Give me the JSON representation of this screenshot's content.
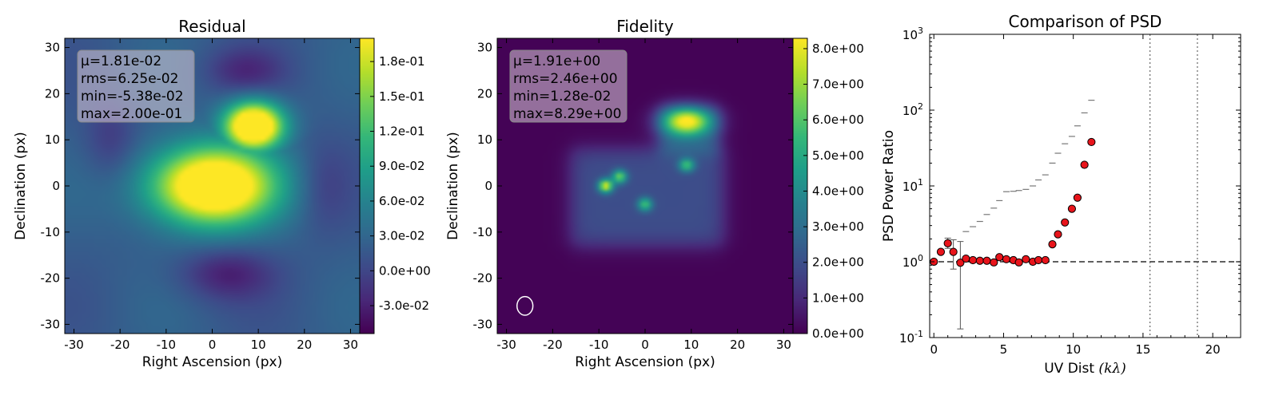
{
  "chart_data": [
    {
      "type": "heatmap",
      "title": "Residual",
      "xlabel": "Right Ascension (px)",
      "ylabel": "Declination (px)",
      "xlim": [
        -32,
        32
      ],
      "ylim": [
        -32,
        32
      ],
      "xticks": [
        -30,
        -20,
        -10,
        0,
        10,
        20,
        30
      ],
      "yticks": [
        -30,
        -20,
        -10,
        0,
        10,
        20,
        30
      ],
      "colormap": "viridis",
      "color_range": [
        -0.054,
        0.2
      ],
      "colorbar_ticks": [
        "-3.0e-02",
        "0.0e+00",
        "3.0e-02",
        "6.0e-02",
        "9.0e-02",
        "1.2e-01",
        "1.5e-01",
        "1.8e-01"
      ],
      "colorbar_tick_values": [
        -0.03,
        0.0,
        0.03,
        0.06,
        0.09,
        0.12,
        0.15,
        0.18
      ],
      "stats": [
        "μ=1.81e-02",
        "rms=6.25e-02",
        "min=-5.38e-02",
        "max=2.00e-01"
      ],
      "sources": [
        {
          "x": 0,
          "y": 0,
          "sx": 9.5,
          "sy": 6,
          "amp": 0.19
        },
        {
          "x": 9,
          "y": 13,
          "sx": 4.5,
          "sy": 3.6,
          "amp": 0.2
        },
        {
          "x": 9,
          "y": 5,
          "sx": 1.5,
          "sy": 1.5,
          "amp": 0.05
        }
      ],
      "negatives": [
        {
          "x": 3,
          "y": -19,
          "sx": 7,
          "sy": 4,
          "amp": -0.05
        },
        {
          "x": 7,
          "y": 25,
          "sx": 6,
          "sy": 3.5,
          "amp": -0.04
        },
        {
          "x": -22,
          "y": 10,
          "sx": 4,
          "sy": 6,
          "amp": -0.03
        },
        {
          "x": 24,
          "y": 0,
          "sx": 4,
          "sy": 7,
          "amp": -0.025
        }
      ]
    },
    {
      "type": "heatmap",
      "title": "Fidelity",
      "xlabel": "Right Ascension (px)",
      "ylabel": "Declination (px)",
      "xlim": [
        -32,
        32
      ],
      "ylim": [
        -32,
        32
      ],
      "xticks": [
        -30,
        -20,
        -10,
        0,
        10,
        20,
        30
      ],
      "yticks": [
        -30,
        -20,
        -10,
        0,
        10,
        20,
        30
      ],
      "colormap": "viridis",
      "color_range": [
        0,
        8.29
      ],
      "colorbar_ticks": [
        "0.0e+00",
        "1.0e+00",
        "2.0e+00",
        "3.0e+00",
        "4.0e+00",
        "5.0e+00",
        "6.0e+00",
        "7.0e+00",
        "8.0e+00"
      ],
      "colorbar_tick_values": [
        0,
        1,
        2,
        3,
        4,
        5,
        6,
        7,
        8
      ],
      "stats": [
        "μ=1.91e+00",
        "rms=2.46e+00",
        "min=1.28e-02",
        "max=8.29e+00"
      ],
      "plateau": {
        "xmin": -16,
        "xmax": 17,
        "ymin": -13,
        "ymax": 8,
        "level": 1.9
      },
      "plateau2": {
        "xmin": 3,
        "xmax": 16,
        "ymin": 7,
        "ymax": 17,
        "level": 2.2
      },
      "sources": [
        {
          "x": 9,
          "y": 14,
          "sx": 3.8,
          "sy": 2.2,
          "amp": 6.5
        },
        {
          "x": -8.5,
          "y": 0,
          "sx": 1.1,
          "sy": 1.0,
          "amp": 6.0
        },
        {
          "x": -5.5,
          "y": 2,
          "sx": 1.1,
          "sy": 1.0,
          "amp": 4.5
        },
        {
          "x": 0,
          "y": -4,
          "sx": 1.1,
          "sy": 1.0,
          "amp": 3.8
        },
        {
          "x": 9,
          "y": 4.5,
          "sx": 1.2,
          "sy": 1.0,
          "amp": 3.8
        }
      ],
      "beam": {
        "x": -26,
        "y": -26,
        "rx": 1.2,
        "ry": 1.5
      }
    },
    {
      "type": "scatter",
      "title": "Comparison of PSD",
      "xlabel": "UV Dist",
      "xlabel_math": "(kλ)",
      "ylabel": "PSD Power Ratio",
      "xlim": [
        -0.3,
        22
      ],
      "ylim": [
        0.1,
        1000
      ],
      "yscale": "log",
      "xticks": [
        0,
        5,
        10,
        15,
        20
      ],
      "yticks": [
        {
          "value": 0.1,
          "base": "10",
          "exp": "-1"
        },
        {
          "value": 1,
          "base": "10",
          "exp": "0"
        },
        {
          "value": 10,
          "base": "10",
          "exp": "1"
        },
        {
          "value": 100,
          "base": "10",
          "exp": "2"
        },
        {
          "value": 1000,
          "base": "10",
          "exp": "3"
        }
      ],
      "reference_line": 1,
      "vertical_lines": [
        15.5,
        18.9
      ],
      "points": [
        {
          "x": 0.0,
          "y": 1.0
        },
        {
          "x": 0.5,
          "y": 1.35
        },
        {
          "x": 1.0,
          "y": 1.75,
          "err": [
            1.5,
            2.05
          ]
        },
        {
          "x": 1.4,
          "y": 1.35,
          "err": [
            0.8,
            1.95
          ]
        },
        {
          "x": 1.9,
          "y": 0.97,
          "err": [
            0.13,
            1.85
          ]
        },
        {
          "x": 2.3,
          "y": 1.1
        },
        {
          "x": 2.8,
          "y": 1.05
        },
        {
          "x": 3.3,
          "y": 1.03
        },
        {
          "x": 3.8,
          "y": 1.03
        },
        {
          "x": 4.3,
          "y": 0.98
        },
        {
          "x": 4.7,
          "y": 1.15
        },
        {
          "x": 5.2,
          "y": 1.08
        },
        {
          "x": 5.7,
          "y": 1.05
        },
        {
          "x": 6.1,
          "y": 0.98
        },
        {
          "x": 6.6,
          "y": 1.08
        },
        {
          "x": 7.1,
          "y": 1.0
        },
        {
          "x": 7.5,
          "y": 1.05
        },
        {
          "x": 8.0,
          "y": 1.05
        },
        {
          "x": 8.5,
          "y": 1.7
        },
        {
          "x": 8.9,
          "y": 2.3
        },
        {
          "x": 9.4,
          "y": 3.3
        },
        {
          "x": 9.9,
          "y": 5.0
        },
        {
          "x": 10.3,
          "y": 7.0
        },
        {
          "x": 10.8,
          "y": 19.0
        },
        {
          "x": 11.3,
          "y": 38.0
        }
      ],
      "limit_markers": [
        {
          "x": 2.3,
          "y": 2.5
        },
        {
          "x": 2.8,
          "y": 2.9
        },
        {
          "x": 3.3,
          "y": 3.4
        },
        {
          "x": 3.8,
          "y": 4.2
        },
        {
          "x": 4.3,
          "y": 5.1
        },
        {
          "x": 4.7,
          "y": 6.4
        },
        {
          "x": 5.2,
          "y": 8.4
        },
        {
          "x": 5.7,
          "y": 8.5
        },
        {
          "x": 6.1,
          "y": 8.7
        },
        {
          "x": 6.6,
          "y": 9.0
        },
        {
          "x": 7.1,
          "y": 10.0
        },
        {
          "x": 7.5,
          "y": 12.0
        },
        {
          "x": 8.0,
          "y": 14.0
        },
        {
          "x": 8.5,
          "y": 20.0
        },
        {
          "x": 8.9,
          "y": 27.0
        },
        {
          "x": 9.4,
          "y": 36.0
        },
        {
          "x": 9.9,
          "y": 45.0
        },
        {
          "x": 10.3,
          "y": 62.0
        },
        {
          "x": 10.8,
          "y": 92.0
        },
        {
          "x": 11.3,
          "y": 135.0
        }
      ]
    }
  ]
}
